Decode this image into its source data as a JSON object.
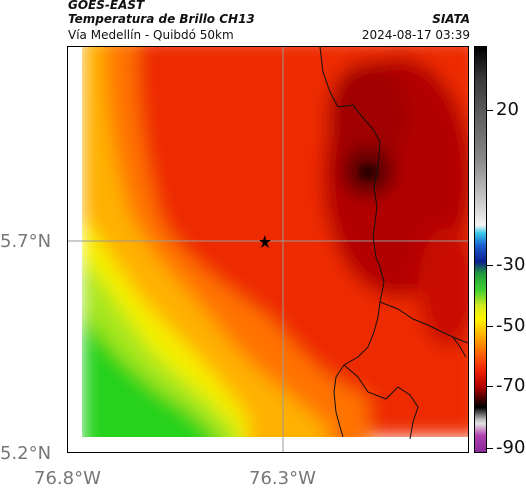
{
  "header": {
    "title_line1": "GOES-EAST",
    "title_line2": "Temperatura de Brillo CH13",
    "agency": "SIATA",
    "subtitle": "Vía Medellín - Quibdó 50km",
    "timestamp": "2024-08-17 03:39"
  },
  "axes": {
    "lat_labels": [
      "5.7°N",
      "5.2°N"
    ],
    "lon_labels": [
      "76.8°W",
      "76.3°W"
    ]
  },
  "colorbar": {
    "labels": [
      "20",
      "-30",
      "-50",
      "-70",
      "-90"
    ],
    "unit_colors": {
      "cold": "#000000",
      "red": "#e81a00",
      "orange": "#ff7a00",
      "yellow": "#fff200",
      "green": "#2ed024",
      "blue": "#0d1f8f",
      "cyan": "#38c8e8",
      "magenta": "#b040b0"
    }
  },
  "map": {
    "marker_icon": "star-icon",
    "colors": {
      "bg_red": "#ee2a00",
      "dark_red": "#a50000",
      "core": "#3a0000",
      "orange": "#ff7300",
      "yellow_orange": "#ffb000",
      "yellow": "#f5f000",
      "green_yellow": "#a6e61a",
      "green": "#28d21e"
    }
  }
}
